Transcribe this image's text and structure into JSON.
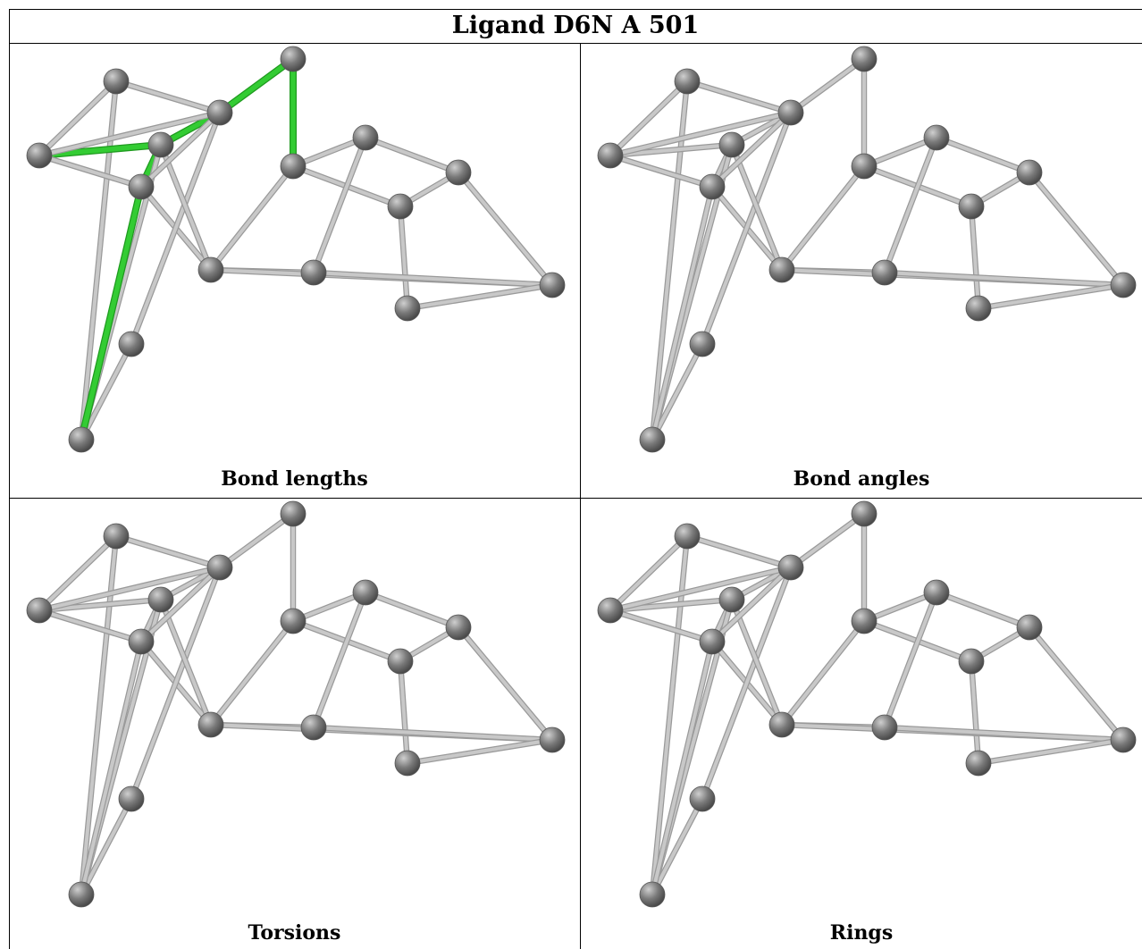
{
  "title": "Ligand D6N A 501",
  "panels": [
    {
      "caption": "Bond lengths",
      "highlight_color": "#2ecc2e"
    },
    {
      "caption": "Bond angles"
    },
    {
      "caption": "Torsions"
    },
    {
      "caption": "Rings"
    }
  ],
  "colors": {
    "atom": "#7a7a7a",
    "bond": "#c8c8c8",
    "highlight": "#33cc33"
  }
}
